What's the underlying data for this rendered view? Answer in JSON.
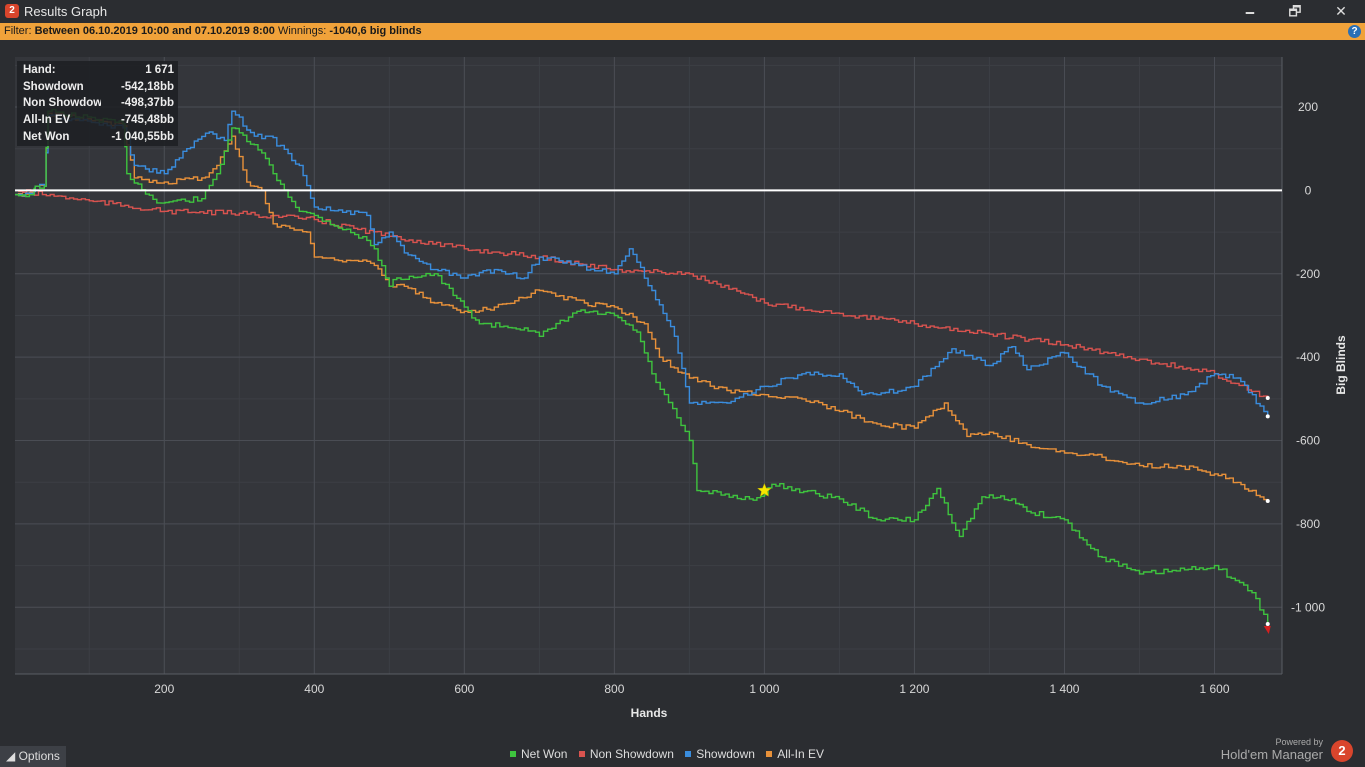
{
  "window": {
    "title": "Results Graph",
    "app_icon_text": "2",
    "minimize_glyph": "🗕",
    "maximize_glyph": "🗗",
    "close_glyph": "✕"
  },
  "filter": {
    "prefix": "Filter:",
    "range": "Between 06.10.2019 10:00 and 07.10.2019 8:00",
    "winnings_label": "Winnings:",
    "winnings_value": "-1040,6 big blinds",
    "help_glyph": "?"
  },
  "tooltip": {
    "rows": [
      {
        "key": "Hand:",
        "value": "1 671"
      },
      {
        "key": "Showdown",
        "value": "-542,18bb"
      },
      {
        "key": "Non Showdown",
        "value": "-498,37bb"
      },
      {
        "key": "All-In EV",
        "value": "-745,48bb"
      },
      {
        "key": "Net Won",
        "value": "-1 040,55bb"
      }
    ]
  },
  "options": {
    "label": "◢ Options"
  },
  "brand": {
    "powered_by": "Powered by",
    "name": "Hold'em Manager",
    "logo_text": "2"
  },
  "chart_data": {
    "type": "line",
    "xlabel": "Hands",
    "ylabel": "Big Blinds",
    "xlim": [
      1,
      1690
    ],
    "ylim": [
      -1160,
      320
    ],
    "xticks": [
      200,
      400,
      600,
      800,
      1000,
      1200,
      1400,
      1600
    ],
    "xtick_labels": [
      "200",
      "400",
      "600",
      "800",
      "1 000",
      "1 200",
      "1 400",
      "1 600"
    ],
    "yticks": [
      200,
      0,
      -200,
      -400,
      -600,
      -800,
      -1000
    ],
    "ytick_labels": [
      "200",
      "0",
      "-200",
      "-400",
      "-600",
      "-800",
      "-1 000"
    ],
    "zero_line": true,
    "grid": true,
    "legend_position": "bottom-center",
    "marker": {
      "x": 1000,
      "y": -720,
      "symbol": "star"
    },
    "series": [
      {
        "name": "Net Won",
        "color": "#3ec43e",
        "x": [
          1,
          25,
          28,
          40,
          45,
          145,
          150,
          190,
          250,
          270,
          290,
          330,
          345,
          380,
          400,
          470,
          480,
          500,
          510,
          560,
          600,
          620,
          680,
          700,
          750,
          800,
          830,
          850,
          900,
          910,
          980,
          1000,
          1010,
          1100,
          1150,
          1200,
          1230,
          1260,
          1290,
          1330,
          1350,
          1400,
          1430,
          1450,
          1500,
          1560,
          1600,
          1650,
          1671
        ],
        "y": [
          -10,
          -10,
          10,
          10,
          190,
          160,
          40,
          -30,
          -20,
          40,
          150,
          90,
          40,
          -50,
          -60,
          -120,
          -140,
          -230,
          -210,
          -200,
          -280,
          -320,
          -330,
          -350,
          -290,
          -300,
          -340,
          -440,
          -600,
          -720,
          -740,
          -730,
          -705,
          -740,
          -790,
          -790,
          -715,
          -830,
          -735,
          -740,
          -770,
          -790,
          -850,
          -880,
          -920,
          -910,
          -900,
          -965,
          -1040
        ]
      },
      {
        "name": "Non Showdown",
        "color": "#d9534f",
        "x": [
          1,
          100,
          200,
          300,
          400,
          500,
          600,
          700,
          800,
          900,
          1000,
          1100,
          1200,
          1300,
          1400,
          1500,
          1600,
          1671
        ],
        "y": [
          0,
          -25,
          -50,
          -55,
          -70,
          -110,
          -140,
          -160,
          -190,
          -200,
          -270,
          -295,
          -320,
          -345,
          -370,
          -405,
          -440,
          -498
        ]
      },
      {
        "name": "Showdown",
        "color": "#3a8dde",
        "x": [
          1,
          25,
          28,
          40,
          45,
          145,
          160,
          200,
          230,
          260,
          280,
          290,
          320,
          340,
          380,
          400,
          470,
          480,
          500,
          520,
          560,
          600,
          640,
          680,
          700,
          800,
          820,
          850,
          880,
          900,
          950,
          1000,
          1050,
          1100,
          1130,
          1150,
          1200,
          1250,
          1300,
          1330,
          1350,
          1400,
          1450,
          1500,
          1560,
          1600,
          1630,
          1671
        ],
        "y": [
          -10,
          -10,
          10,
          10,
          180,
          150,
          60,
          40,
          100,
          140,
          120,
          190,
          130,
          130,
          60,
          -40,
          -60,
          -130,
          -100,
          -150,
          -190,
          -210,
          -190,
          -210,
          -160,
          -200,
          -140,
          -240,
          -350,
          -510,
          -510,
          -470,
          -440,
          -440,
          -490,
          -490,
          -470,
          -380,
          -420,
          -375,
          -430,
          -390,
          -470,
          -510,
          -490,
          -440,
          -450,
          -542
        ]
      },
      {
        "name": "All-In EV",
        "color": "#e8913a",
        "x": [
          1,
          25,
          28,
          40,
          45,
          145,
          160,
          200,
          250,
          270,
          290,
          310,
          330,
          345,
          390,
          400,
          470,
          480,
          500,
          520,
          560,
          600,
          640,
          700,
          760,
          800,
          840,
          860,
          900,
          950,
          1000,
          1050,
          1100,
          1150,
          1200,
          1240,
          1270,
          1300,
          1350,
          1400,
          1450,
          1500,
          1550,
          1600,
          1620,
          1671
        ],
        "y": [
          -10,
          -10,
          10,
          10,
          185,
          155,
          30,
          20,
          30,
          60,
          130,
          20,
          0,
          -80,
          -100,
          -160,
          -170,
          -180,
          -230,
          -230,
          -270,
          -290,
          -280,
          -240,
          -270,
          -280,
          -320,
          -400,
          -450,
          -480,
          -490,
          -500,
          -530,
          -560,
          -570,
          -510,
          -590,
          -580,
          -610,
          -630,
          -640,
          -660,
          -660,
          -680,
          -690,
          -745
        ]
      }
    ]
  }
}
